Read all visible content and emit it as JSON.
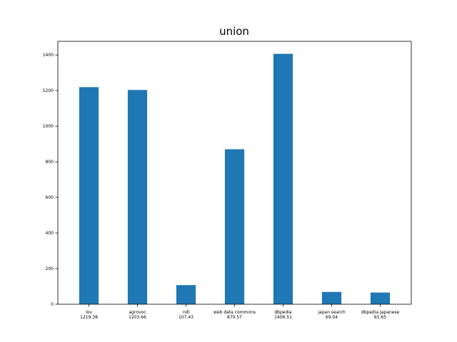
{
  "chart_data": {
    "type": "bar",
    "title": "union",
    "xlabel": "",
    "ylabel": "",
    "categories": [
      "lov",
      "agrovoc",
      "ndl",
      "web data commons",
      "dbpedia",
      "japan search",
      "dbpedia Japanese"
    ],
    "value_labels": [
      "1219.38",
      "1203.66",
      "107.43",
      "870.57",
      "1406.51",
      "69.04",
      "65.65"
    ],
    "values": [
      1219.38,
      1203.66,
      107.43,
      870.57,
      1406.51,
      69.04,
      65.65
    ],
    "yticks": [
      0,
      200,
      400,
      600,
      800,
      1000,
      1200,
      1400
    ],
    "ylim": [
      0,
      1476.8
    ],
    "grid": false,
    "legend": "none",
    "bar_color": "#1f77b4"
  }
}
